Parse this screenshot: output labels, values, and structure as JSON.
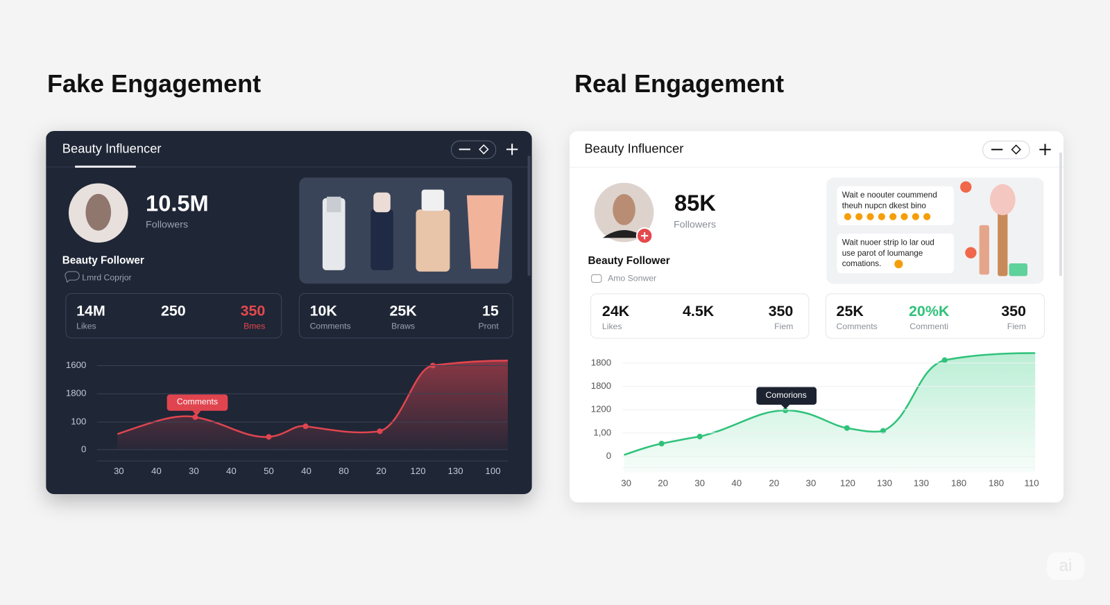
{
  "panels": [
    {
      "heading": "Fake Engagement",
      "card_title": "Beauty Influencer",
      "followers": "10.5M",
      "followers_label": "Followers",
      "profile_name": "Beauty Follower",
      "profile_sub": "Lmrd Coprjor",
      "stats": [
        [
          {
            "value": "14M",
            "label": "Likes"
          },
          {
            "value": "250"
          },
          {
            "value": "350",
            "label": "Bmes"
          }
        ],
        [
          {
            "value": "10K",
            "label": "Comments"
          },
          {
            "value": "25K",
            "label": "Braws"
          },
          {
            "value": "15",
            "label": "Pront"
          }
        ]
      ],
      "chart": {
        "y_labels": [
          "1600",
          "1800",
          "100",
          "0"
        ],
        "x_labels": [
          "30",
          "40",
          "30",
          "40",
          "50",
          "40",
          "80",
          "20",
          "120",
          "130",
          "100"
        ],
        "annotation": "Comments"
      }
    },
    {
      "heading": "Real Engagement",
      "card_title": "Beauty Influencer",
      "followers": "85K",
      "followers_label": "Followers",
      "profile_name": "Beauty Follower",
      "profile_sub": "Amo Sonwer",
      "comments": [
        [
          "Wait e noouter coummend",
          "theuh nupcn dkest bino"
        ],
        [
          "Wait nuoer strip lo lar oud",
          "use parot of loumange",
          "comations."
        ]
      ],
      "stats": [
        [
          {
            "value": "24K",
            "label": "Likes"
          },
          {
            "value": "4.5K"
          },
          {
            "value": "350",
            "label": "Fiem"
          }
        ],
        [
          {
            "value": "25K",
            "label": "Comments"
          },
          {
            "value": "20%K",
            "label": "Commenti"
          },
          {
            "value": "350",
            "label": "Fiem"
          }
        ]
      ],
      "chart": {
        "y_labels": [
          "1800",
          "1800",
          "1200",
          "1,00",
          "0"
        ],
        "x_labels": [
          "30",
          "20",
          "30",
          "40",
          "20",
          "30",
          "120",
          "130",
          "130",
          "180",
          "180",
          "110"
        ],
        "annotation": "Comorions"
      }
    }
  ],
  "watermark": "ai"
}
